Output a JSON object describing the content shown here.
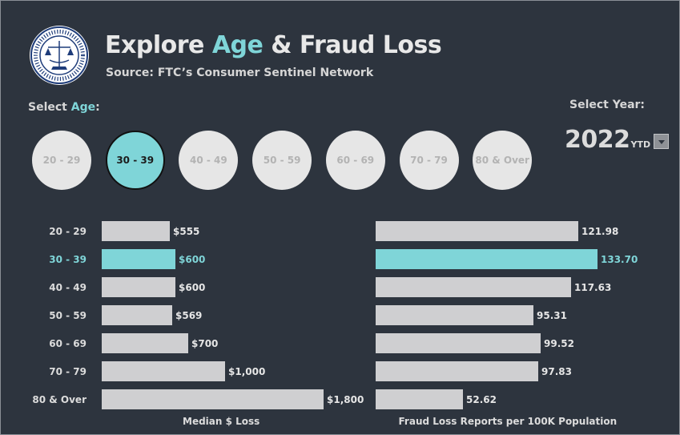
{
  "header": {
    "title_part1": "Explore ",
    "title_accent": "Age",
    "title_part2": " & Fraud Loss",
    "subtitle": "Source: FTC’s Consumer Sentinel Network"
  },
  "colors": {
    "background": "#2d343e",
    "accent": "#7fd5d8",
    "bar": "#cfcfd1",
    "button": "#e6e6e6"
  },
  "age_selector": {
    "label_part1": "Select ",
    "label_accent": "Age",
    "label_part2": ":",
    "options": [
      "20 - 29",
      "30 - 39",
      "40 - 49",
      "50 - 59",
      "60 - 69",
      "70 - 79",
      "80 & Over"
    ],
    "selected": "30 - 39"
  },
  "year_selector": {
    "label": "Select Year:",
    "value": "2022",
    "suffix": "YTD",
    "dropdown_icon": "chevron-down-icon"
  },
  "chart_data": [
    {
      "type": "bar",
      "orientation": "horizontal",
      "categories": [
        "20 - 29",
        "30 - 39",
        "40 - 49",
        "50 - 59",
        "60 - 69",
        "70 - 79",
        "80 & Over"
      ],
      "values": [
        555,
        600,
        600,
        569,
        700,
        1000,
        1800
      ],
      "value_labels": [
        "$555",
        "$600",
        "$600",
        "$569",
        "$700",
        "$1,000",
        "$1,800"
      ],
      "highlighted": "30 - 39",
      "xlabel": "Median $ Loss",
      "xlim": [
        0,
        1800
      ]
    },
    {
      "type": "bar",
      "orientation": "horizontal",
      "categories": [
        "20 - 29",
        "30 - 39",
        "40 - 49",
        "50 - 59",
        "60 - 69",
        "70 - 79",
        "80 & Over"
      ],
      "values": [
        121.98,
        133.7,
        117.63,
        95.31,
        99.52,
        97.83,
        52.62
      ],
      "value_labels": [
        "121.98",
        "133.70",
        "117.63",
        "95.31",
        "99.52",
        "97.83",
        "52.62"
      ],
      "highlighted": "30 - 39",
      "xlabel": "Fraud Loss Reports per 100K Population",
      "xlim": [
        0,
        133.7
      ]
    }
  ]
}
